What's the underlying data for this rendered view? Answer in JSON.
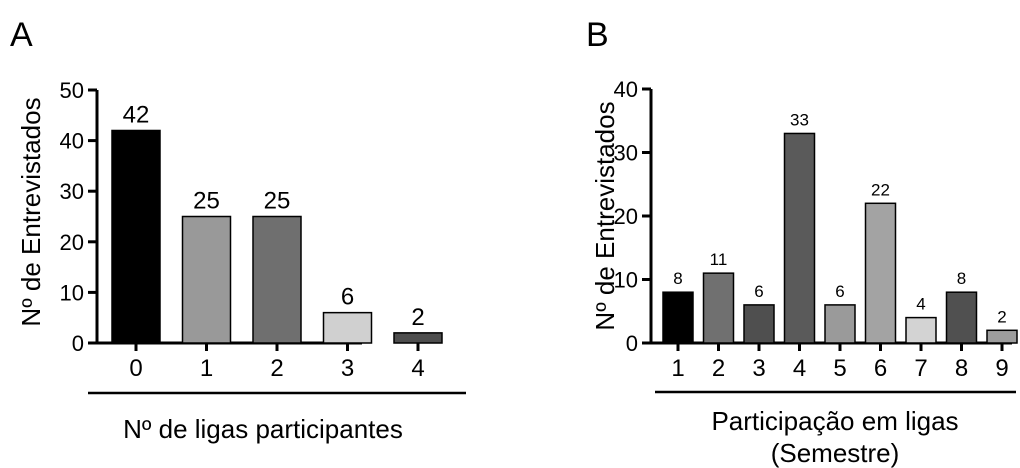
{
  "chart_data": [
    {
      "type": "bar",
      "panel_label": "A",
      "ylabel": "Nº de Entrevistados",
      "xlabel": "Nº de ligas participantes",
      "categories": [
        "0",
        "1",
        "2",
        "3",
        "4"
      ],
      "values": [
        42,
        25,
        25,
        6,
        2
      ],
      "data_labels": [
        "42",
        "25",
        "25",
        "6",
        "2"
      ],
      "bar_colors": [
        "#000000",
        "#999999",
        "#6f6f6f",
        "#d0d0d0",
        "#4d4d4d"
      ],
      "ylim": [
        0,
        50
      ],
      "yticks": [
        "0",
        "10",
        "20",
        "30",
        "40",
        "50"
      ],
      "grid": false
    },
    {
      "type": "bar",
      "panel_label": "B",
      "ylabel": "Nº de Entrevistados",
      "xlabel": [
        "Participação em ligas",
        "(Semestre)"
      ],
      "categories": [
        "1",
        "2",
        "3",
        "4",
        "5",
        "6",
        "7",
        "8",
        "9"
      ],
      "values": [
        8,
        11,
        6,
        33,
        6,
        22,
        4,
        8,
        2
      ],
      "data_labels": [
        "8",
        "11",
        "6",
        "33",
        "6",
        "22",
        "4",
        "8",
        "2"
      ],
      "bar_colors": [
        "#000000",
        "#707070",
        "#4f4f4f",
        "#5a5a5a",
        "#9a9a9a",
        "#a3a3a3",
        "#d3d3d3",
        "#505050",
        "#9d9d9d"
      ],
      "ylim": [
        0,
        40
      ],
      "yticks": [
        "0",
        "10",
        "20",
        "30",
        "40"
      ],
      "grid": false
    }
  ]
}
